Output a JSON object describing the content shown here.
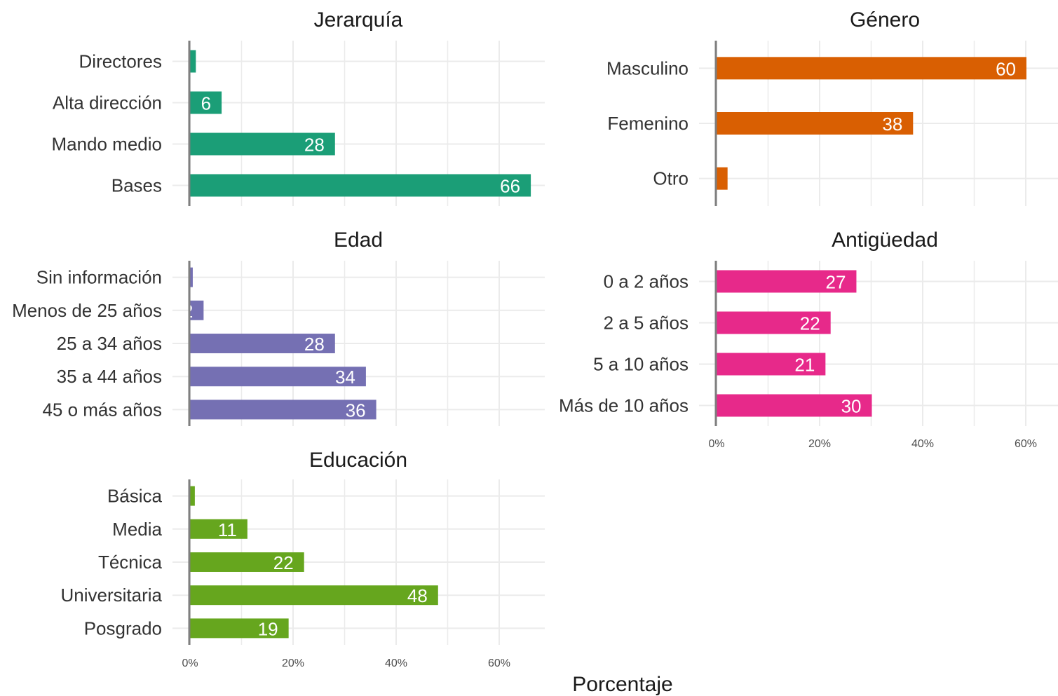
{
  "chart_data": [
    {
      "type": "bar",
      "title": "Jerarquía",
      "categories": [
        "Directores",
        "Alta dirección",
        "Mando medio",
        "Bases"
      ],
      "values": [
        1,
        6,
        28,
        66
      ],
      "labels": [
        "",
        "6",
        "28",
        "66"
      ],
      "color": "#1b9e77"
    },
    {
      "type": "bar",
      "title": "Género",
      "categories": [
        "Masculino",
        "Femenino",
        "Otro"
      ],
      "values": [
        60,
        38,
        2
      ],
      "labels": [
        "60",
        "38",
        ""
      ],
      "color": "#d95f02"
    },
    {
      "type": "bar",
      "title": "Edad",
      "categories": [
        "Sin información",
        "Menos de 25 años",
        "25 a 34 años",
        "35 a 44 años",
        "45 o más años"
      ],
      "values": [
        0.4,
        2.5,
        28,
        34,
        36
      ],
      "labels": [
        "",
        "2",
        "28",
        "34",
        "36"
      ],
      "color": "#7570b3"
    },
    {
      "type": "bar",
      "title": "Antigüedad",
      "categories": [
        "0 a 2 años",
        "2 a 5 años",
        "5 a 10 años",
        "Más de 10 años"
      ],
      "values": [
        27,
        22,
        21,
        30
      ],
      "labels": [
        "27",
        "22",
        "21",
        "30"
      ],
      "color": "#e7298a"
    },
    {
      "type": "bar",
      "title": "Educación",
      "categories": [
        "Básica",
        "Media",
        "Técnica",
        "Universitaria",
        "Posgrado"
      ],
      "values": [
        0.8,
        11,
        22,
        48,
        19
      ],
      "labels": [
        "",
        "11",
        "22",
        "48",
        "19"
      ],
      "color": "#66a61e"
    }
  ],
  "axis": {
    "xlabel": "Porcentaje",
    "xlim": [
      0,
      70
    ],
    "ticks": [
      0,
      20,
      40,
      60
    ],
    "tick_labels": [
      "0%",
      "20%",
      "40%",
      "60%"
    ]
  }
}
